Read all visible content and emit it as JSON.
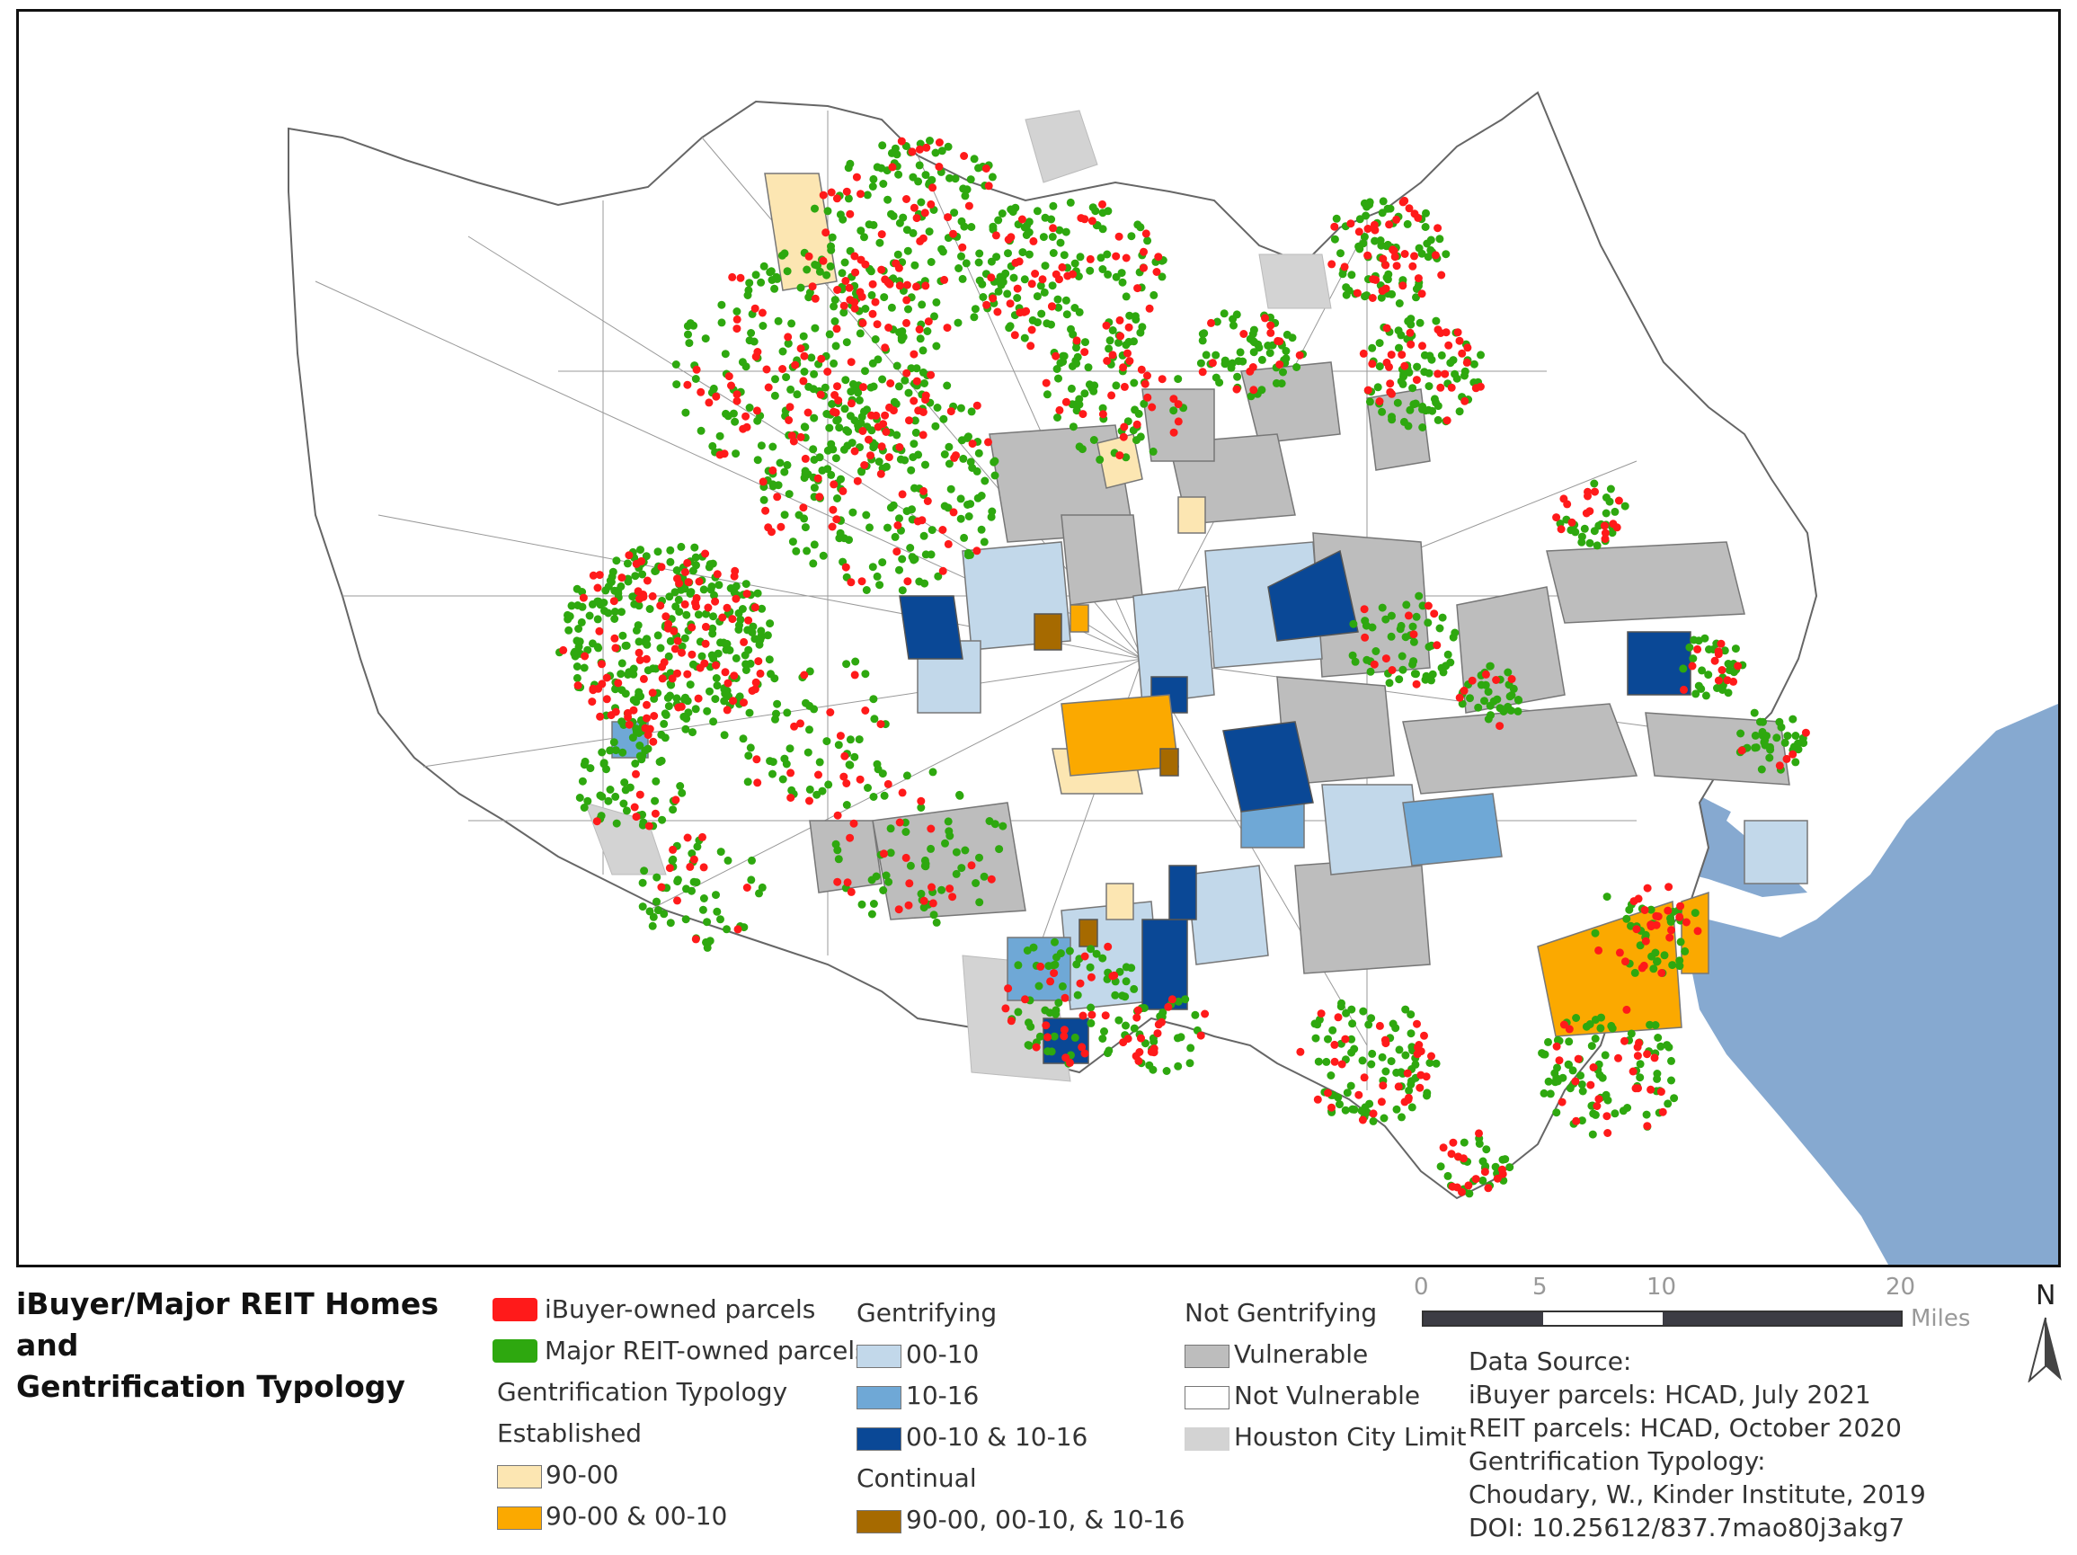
{
  "legend": {
    "title_line1": "iBuyer/Major REIT Homes and",
    "title_line2": "Gentrification Typology",
    "ibuyer": "iBuyer-owned parcels",
    "reit": "Major REIT-owned parcels",
    "typology_heading": "Gentrification Typology",
    "established_heading": "Established",
    "est_1": "90-00",
    "est_2": "90-00 & 00-10",
    "gentrifying_heading": "Gentrifying",
    "gen_1": "00-10",
    "gen_2": "10-16",
    "gen_3": "00-10 & 10-16",
    "continual_heading": "Continual",
    "cont_1": "90-00, 00-10, & 10-16",
    "not_gentrifying_heading": "Not Gentrifying",
    "ng_1": "Vulnerable",
    "ng_2": "Not Vulnerable",
    "ng_3": "Houston City Limit"
  },
  "scale": {
    "t0": "0",
    "t1": "5",
    "t2": "10",
    "t3": "20",
    "unit": "Miles"
  },
  "north": "N",
  "source": {
    "l1": "Data Source:",
    "l2": "iBuyer parcels: HCAD, July 2021",
    "l3": "REIT parcels: HCAD, October 2020",
    "l4": "Gentrification Typology:",
    "l5": "Choudary, W., Kinder Institute, 2019",
    "l6": "DOI: 10.25612/837.7mao80j3akg7"
  },
  "colors": {
    "ibuyer": "#ff1a1a",
    "reit": "#2ea80f",
    "est_90_00": "#fce6b2",
    "est_90_00_00_10": "#fba900",
    "gen_00_10": "#c2d8ea",
    "gen_10_16": "#6fa8d6",
    "gen_00_10_10_16": "#0a4896",
    "cont": "#a66a00",
    "vulnerable": "#bdbdbd",
    "not_vulnerable": "#ffffff",
    "city_limit": "#d3d3d3",
    "water": "#86a9d0"
  }
}
